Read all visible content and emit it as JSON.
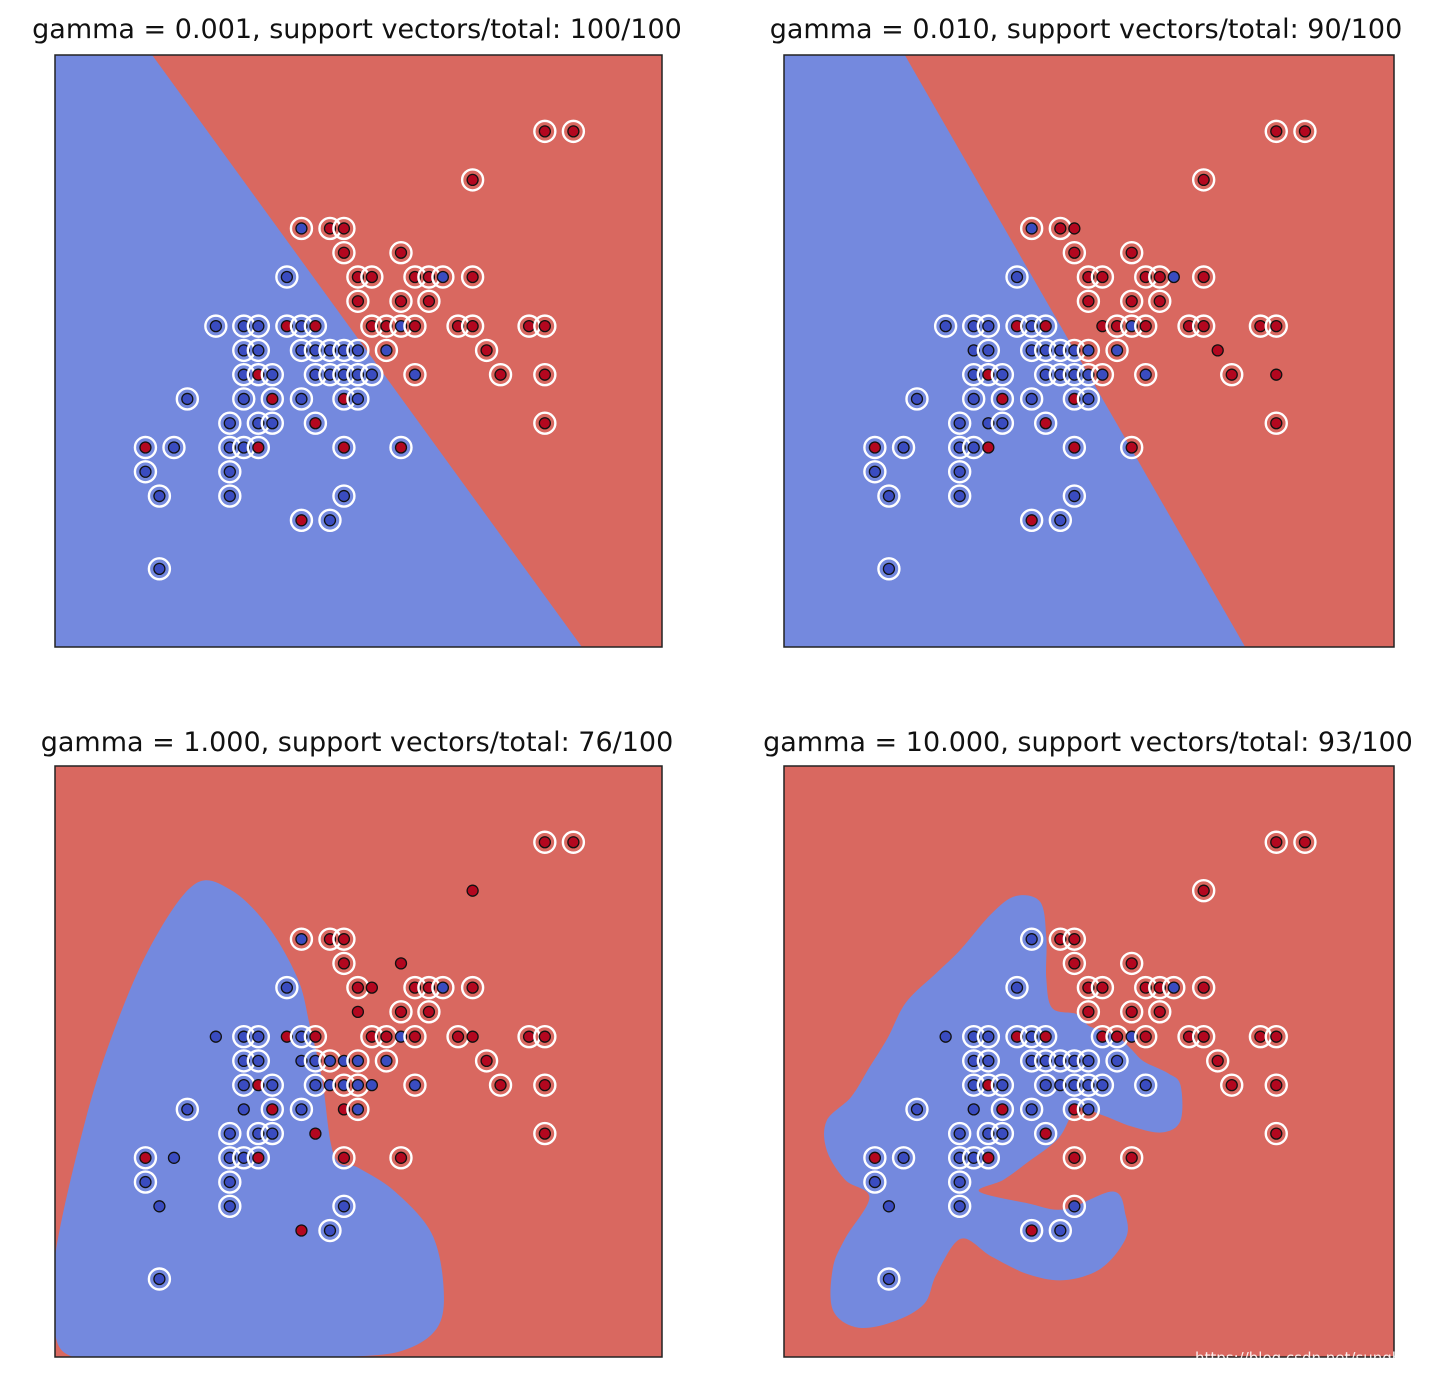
{
  "colors": {
    "class_a_region": "#7489de",
    "class_b_region": "#d96860",
    "class_a_point": "#3a4cc0",
    "class_b_point": "#b3071f",
    "support_vector_ring": "#ffffff",
    "axes_frame": "#222222"
  },
  "watermark": "https://blog.csdn.net/sunghosts",
  "chart_data": [
    {
      "type": "scatter",
      "title": "gamma = 0.001, support vectors/total: 100/100",
      "gamma": 0.001,
      "support_vectors": 100,
      "total": 100,
      "xlim": [
        0,
        100
      ],
      "ylim": [
        0,
        100
      ],
      "boundary": "linear",
      "boundary_line": [
        [
          16.0,
          100
        ],
        [
          86.8,
          0
        ]
      ],
      "grid": false,
      "ticks": false
    },
    {
      "type": "scatter",
      "title": "gamma = 0.010, support vectors/total: 90/100",
      "gamma": 0.01,
      "support_vectors": 90,
      "total": 100,
      "xlim": [
        0,
        100
      ],
      "ylim": [
        0,
        100
      ],
      "boundary": "linear",
      "boundary_line": [
        [
          19.8,
          100
        ],
        [
          75.6,
          0
        ]
      ],
      "grid": false,
      "ticks": false
    },
    {
      "type": "scatter",
      "title": "gamma = 1.000, support vectors/total: 76/100",
      "gamma": 1.0,
      "support_vectors": 76,
      "total": 100,
      "xlim": [
        0,
        100
      ],
      "ylim": [
        0,
        100
      ],
      "boundary": "rbf",
      "blue_region": [
        [
          0,
          17
        ],
        [
          5,
          40
        ],
        [
          10,
          56
        ],
        [
          16,
          70
        ],
        [
          23,
          80
        ],
        [
          29,
          79
        ],
        [
          35,
          73
        ],
        [
          40,
          64
        ],
        [
          42,
          56
        ],
        [
          44,
          47
        ],
        [
          46,
          34
        ],
        [
          50,
          32
        ],
        [
          56,
          28
        ],
        [
          62,
          21
        ],
        [
          64,
          12
        ],
        [
          63,
          5
        ],
        [
          57,
          1
        ],
        [
          47,
          0
        ],
        [
          37,
          0
        ],
        [
          22,
          0
        ],
        [
          10,
          0
        ],
        [
          3,
          0
        ],
        [
          0,
          4
        ]
      ],
      "grid": false,
      "ticks": false
    },
    {
      "type": "scatter",
      "title": "gamma = 10.000, support vectors/total: 93/100",
      "gamma": 10.0,
      "support_vectors": 93,
      "total": 100,
      "xlim": [
        0,
        100
      ],
      "ylim": [
        0,
        100
      ],
      "boundary": "rbf",
      "blue_region": [
        [
          14,
          27
        ],
        [
          10,
          30
        ],
        [
          7,
          35
        ],
        [
          7,
          40
        ],
        [
          11,
          44
        ],
        [
          14,
          49
        ],
        [
          17,
          54
        ],
        [
          20,
          60
        ],
        [
          25,
          65
        ],
        [
          29,
          69
        ],
        [
          34,
          75
        ],
        [
          38,
          78
        ],
        [
          42,
          77
        ],
        [
          43,
          71
        ],
        [
          43,
          64
        ],
        [
          44,
          59
        ],
        [
          48,
          58
        ],
        [
          50,
          56
        ],
        [
          53,
          55
        ],
        [
          55,
          54
        ],
        [
          57,
          52
        ],
        [
          59,
          50
        ],
        [
          63,
          48
        ],
        [
          65,
          46
        ],
        [
          65,
          40
        ],
        [
          62,
          38
        ],
        [
          57,
          39
        ],
        [
          52,
          41
        ],
        [
          48,
          42
        ],
        [
          45,
          37
        ],
        [
          40,
          33
        ],
        [
          36,
          30
        ],
        [
          32,
          28
        ],
        [
          40,
          26
        ],
        [
          46,
          25
        ],
        [
          54,
          28
        ],
        [
          56,
          24
        ],
        [
          56,
          20
        ],
        [
          52,
          15
        ],
        [
          46,
          13
        ],
        [
          40,
          14
        ],
        [
          34,
          17
        ],
        [
          29,
          20
        ],
        [
          25,
          14
        ],
        [
          23,
          9
        ],
        [
          18,
          6
        ],
        [
          12,
          5
        ],
        [
          8,
          8
        ],
        [
          8,
          15
        ],
        [
          10,
          20
        ]
      ],
      "grid": false,
      "ticks": false
    }
  ]
}
